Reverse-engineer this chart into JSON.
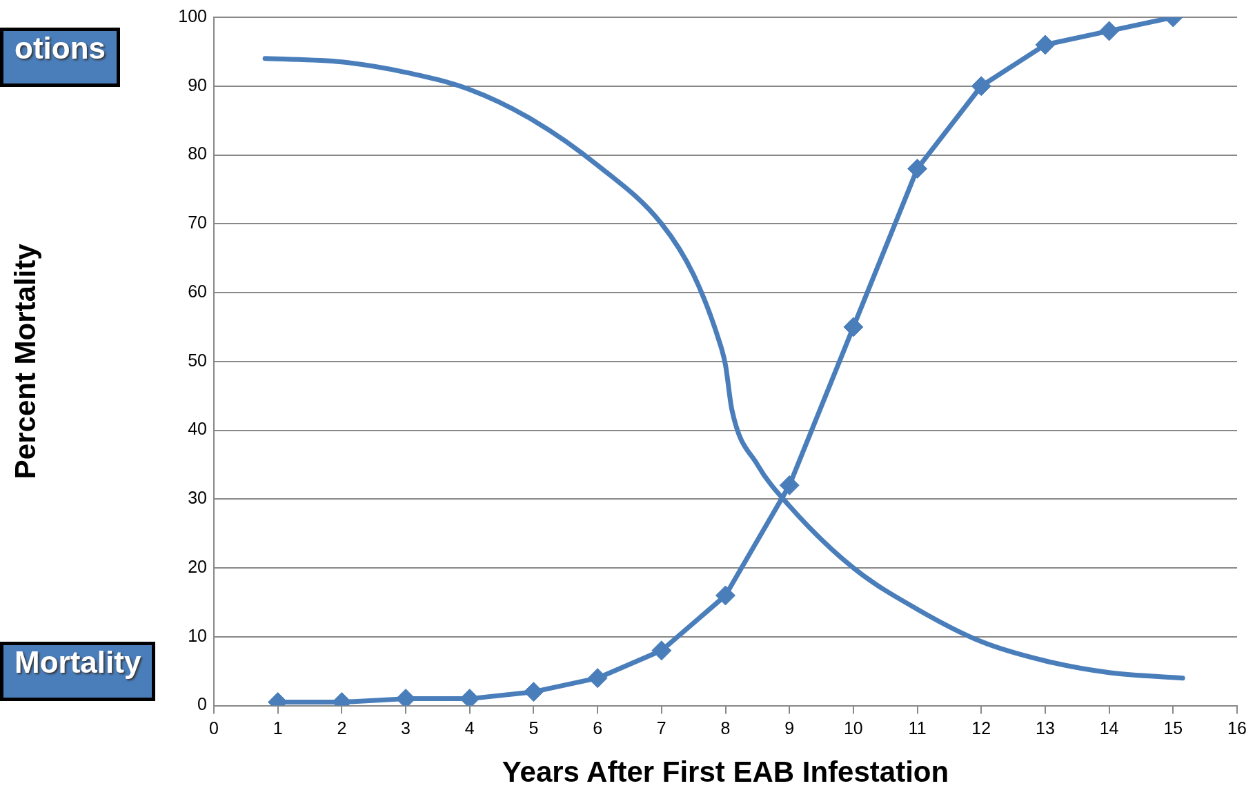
{
  "chart_data": {
    "type": "line",
    "xlabel": "Years After First EAB Infestation",
    "ylabel": "Percent Mortality",
    "xlim": [
      0,
      16
    ],
    "xticks": [
      0,
      1,
      2,
      3,
      4,
      5,
      6,
      7,
      8,
      9,
      10,
      11,
      12,
      13,
      14,
      15,
      16
    ],
    "ylim": [
      0,
      100
    ],
    "yticks": [
      0,
      10,
      20,
      30,
      40,
      50,
      60,
      70,
      80,
      90,
      100
    ],
    "grid": "y",
    "legend": false,
    "series": [
      {
        "name": "otions",
        "color": "#4a7ebb",
        "marker": "none",
        "x": [
          0.8,
          2,
          3,
          4,
          5,
          6,
          7,
          7.5,
          7.9,
          8,
          8.1,
          8.5,
          9,
          10,
          11,
          12,
          13,
          14,
          15.15
        ],
        "values": [
          94,
          93.5,
          92,
          89.5,
          85,
          78.5,
          70,
          62.6,
          53,
          49.5,
          43,
          35,
          29,
          20,
          14,
          9.3,
          6.5,
          4.8,
          4
        ]
      },
      {
        "name": "Mortality",
        "color": "#4a7ebb",
        "marker": "diamond",
        "x": [
          1,
          2,
          3,
          4,
          5,
          6,
          7,
          8,
          9,
          10,
          11,
          12,
          13,
          14,
          15
        ],
        "values": [
          0.5,
          0.5,
          1,
          1,
          2,
          4,
          8,
          16,
          32,
          55,
          78,
          90,
          96,
          98,
          100
        ]
      }
    ]
  }
}
